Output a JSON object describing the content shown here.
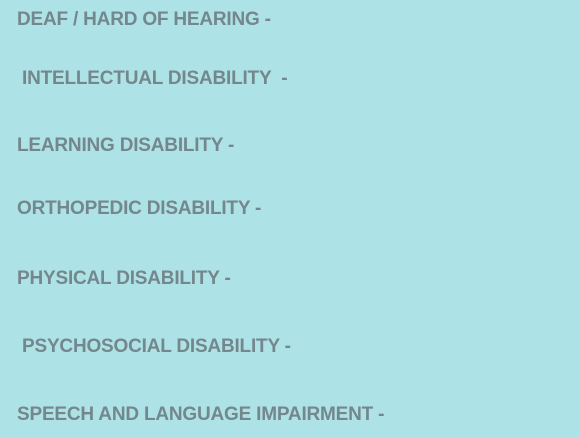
{
  "categories": [
    {
      "label": "DEAF / HARD OF HEARING -"
    },
    {
      "label": "INTELLECTUAL DISABILITY  -"
    },
    {
      "label": "LEARNING DISABILITY -"
    },
    {
      "label": "ORTHOPEDIC DISABILITY -"
    },
    {
      "label": "PHYSICAL DISABILITY -"
    },
    {
      "label": "PSYCHOSOCIAL DISABILITY -"
    },
    {
      "label": "SPEECH AND LANGUAGE IMPAIRMENT -"
    }
  ],
  "colors": {
    "background": "#ade2e7",
    "text": "#74878c"
  }
}
